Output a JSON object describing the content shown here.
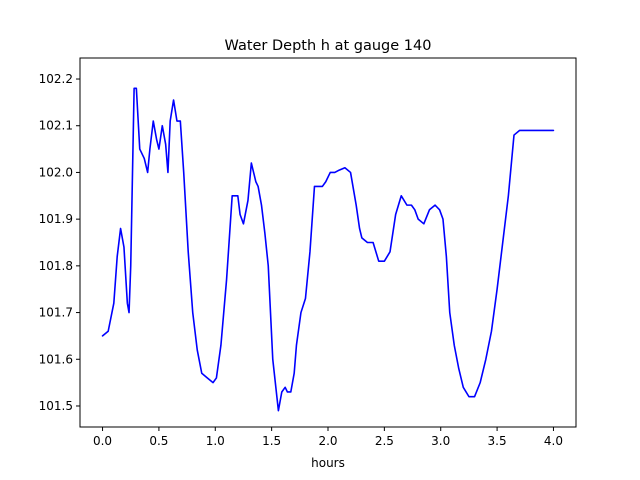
{
  "chart_data": {
    "type": "line",
    "title": "Water Depth h at gauge 140",
    "xlabel": "hours",
    "ylabel": "",
    "xlim": [
      -0.2,
      4.2
    ],
    "ylim": [
      101.455,
      102.245
    ],
    "xticks": [
      0.0,
      0.5,
      1.0,
      1.5,
      2.0,
      2.5,
      3.0,
      3.5,
      4.0
    ],
    "xtick_labels": [
      "0.0",
      "0.5",
      "1.0",
      "1.5",
      "2.0",
      "2.5",
      "3.0",
      "3.5",
      "4.0"
    ],
    "yticks": [
      101.5,
      101.6,
      101.7,
      101.8,
      101.9,
      102.0,
      102.1,
      102.2
    ],
    "ytick_labels": [
      "101.5",
      "101.6",
      "101.7",
      "101.8",
      "101.9",
      "102.0",
      "102.1",
      "102.2"
    ],
    "grid": false,
    "series": [
      {
        "color": "#0000ff",
        "x": [
          0.0,
          0.05,
          0.1,
          0.13,
          0.16,
          0.19,
          0.22,
          0.235,
          0.25,
          0.28,
          0.3,
          0.33,
          0.37,
          0.4,
          0.42,
          0.45,
          0.48,
          0.5,
          0.53,
          0.56,
          0.58,
          0.6,
          0.63,
          0.66,
          0.69,
          0.72,
          0.76,
          0.8,
          0.84,
          0.88,
          0.93,
          0.98,
          1.01,
          1.05,
          1.1,
          1.15,
          1.2,
          1.22,
          1.25,
          1.29,
          1.32,
          1.36,
          1.38,
          1.41,
          1.44,
          1.47,
          1.51,
          1.56,
          1.59,
          1.62,
          1.64,
          1.67,
          1.7,
          1.72,
          1.76,
          1.8,
          1.84,
          1.88,
          1.92,
          1.95,
          1.98,
          2.02,
          2.06,
          2.1,
          2.15,
          2.2,
          2.25,
          2.28,
          2.3,
          2.35,
          2.4,
          2.45,
          2.5,
          2.55,
          2.6,
          2.65,
          2.7,
          2.74,
          2.77,
          2.8,
          2.85,
          2.9,
          2.95,
          2.99,
          3.02,
          3.05,
          3.08,
          3.12,
          3.16,
          3.2,
          3.25,
          3.3,
          3.35,
          3.4,
          3.45,
          3.5,
          3.55,
          3.6,
          3.65,
          3.7,
          3.75,
          3.8,
          3.85,
          3.9,
          3.95,
          4.0
        ],
        "y": [
          101.65,
          101.66,
          101.72,
          101.82,
          101.88,
          101.84,
          101.72,
          101.7,
          101.8,
          102.18,
          102.18,
          102.05,
          102.03,
          102.0,
          102.05,
          102.11,
          102.07,
          102.05,
          102.1,
          102.06,
          102.0,
          102.11,
          102.155,
          102.11,
          102.11,
          102.0,
          101.83,
          101.7,
          101.62,
          101.57,
          101.56,
          101.55,
          101.56,
          101.63,
          101.77,
          101.95,
          101.95,
          101.91,
          101.89,
          101.94,
          102.02,
          101.98,
          101.97,
          101.93,
          101.87,
          101.8,
          101.6,
          101.49,
          101.53,
          101.54,
          101.53,
          101.53,
          101.57,
          101.63,
          101.7,
          101.73,
          101.83,
          101.97,
          101.97,
          101.97,
          101.98,
          102.0,
          102.0,
          102.005,
          102.01,
          102.0,
          101.93,
          101.88,
          101.86,
          101.85,
          101.85,
          101.81,
          101.81,
          101.83,
          101.91,
          101.95,
          101.93,
          101.93,
          101.92,
          101.9,
          101.89,
          101.92,
          101.93,
          101.92,
          101.9,
          101.82,
          101.7,
          101.63,
          101.58,
          101.54,
          101.52,
          101.52,
          101.55,
          101.6,
          101.66,
          101.75,
          101.85,
          101.95,
          102.08,
          102.09,
          102.09,
          102.09,
          102.09,
          102.09,
          102.09,
          102.09
        ]
      }
    ]
  }
}
